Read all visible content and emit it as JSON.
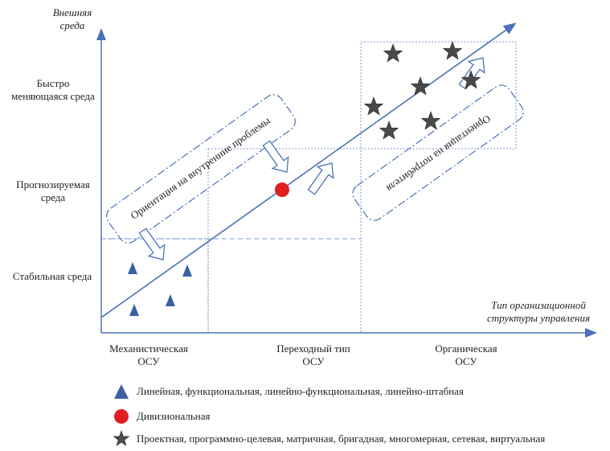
{
  "axes": {
    "y_title": [
      "Внешняя",
      "среда"
    ],
    "x_title": [
      "Тип организационной",
      "структуры управления"
    ]
  },
  "y_levels": {
    "fast": [
      "Быстро",
      "меняющаяся среда"
    ],
    "predictable": [
      "Прогнозируемая",
      "среда"
    ],
    "stable": "Стабильная среда"
  },
  "x_categories": {
    "mechanistic": [
      "Механистическая",
      "ОСУ"
    ],
    "transitional": [
      "Переходный тип",
      "ОСУ"
    ],
    "organic": [
      "Органическая",
      "ОСУ"
    ]
  },
  "orientations": {
    "internal": "Ориентация на внутренние проблемы",
    "consumers": "Ориентация на потребителя"
  },
  "legend": [
    {
      "shape": "triangle",
      "color": "#3b5fa3",
      "label": "Линейная, функциональная, линейно-функциональная, линейно-штабная"
    },
    {
      "shape": "circle",
      "color": "#e02020",
      "label": "Дивизиональная"
    },
    {
      "shape": "star",
      "color": "#4a4a4a",
      "label": "Проектная, программно-целевая, матричная, бригадная, многомерная, сетевая, виртуальная"
    }
  ],
  "colors": {
    "axis": "#4a72b8",
    "triangle": "#3b5fa3",
    "circle": "#e02020",
    "star": "#4a4a4a"
  }
}
